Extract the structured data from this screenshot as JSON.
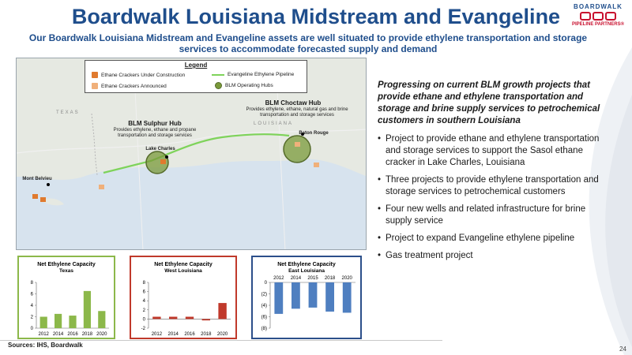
{
  "header": {
    "title": "Boardwalk Louisiana Midstream and Evangeline",
    "subtitle": "Our Boardwalk Louisiana Midstream and Evangeline assets are well situated to provide ethylene transportation and storage services to accommodate forecasted supply and demand"
  },
  "logo": {
    "word": "BOARDWALK",
    "tag": "PIPELINE PARTNERS®"
  },
  "legend": {
    "title": "Legend",
    "items": [
      "Ethane Crackers Under Construction",
      "Evangeline Ethylene Pipeline",
      "Ethane Crackers Announced",
      "BLM Operating Hubs"
    ]
  },
  "map": {
    "state_texas": "TEXAS",
    "state_louisiana": "LOUISIANA",
    "choctaw_title": "BLM Choctaw Hub",
    "choctaw_desc": "Provides ethylene, ethane, natural gas and brine transportation and storage services",
    "sulphur_title": "BLM Sulphur Hub",
    "sulphur_desc": "Provides ethylene, ethane and propane transportation and storage services",
    "city_lake_charles": "Lake Charles",
    "city_baton_rouge": "Baton Rouge",
    "city_mont_belvieu": "Mont Belvieu",
    "colors": {
      "pipeline": "#7ed35a",
      "hub": "#7a9a3a",
      "cracker": "#e07a2e"
    }
  },
  "right": {
    "lead": "Progressing on current BLM growth projects that provide ethane and ethylene transportation and storage and brine supply services to petrochemical customers in southern Louisiana",
    "bullets": [
      "Project to provide ethane and ethylene transportation and storage services to support the Sasol ethane cracker in Lake Charles, Louisiana",
      "Three projects to provide ethylene transportation and storage services to petrochemical customers",
      "Four new wells and related infrastructure for brine supply service",
      "Project to expand Evangeline ethylene pipeline",
      "Gas treatment project"
    ]
  },
  "chart_data": [
    {
      "type": "bar",
      "title": "Net Ethylene Capacity",
      "subtitle": "Texas",
      "categories": [
        "2012",
        "2014",
        "2016",
        "2018",
        "2020"
      ],
      "values": [
        2,
        2.5,
        2.2,
        6.5,
        3
      ],
      "ylim": [
        0,
        8
      ],
      "yticks": [
        "0",
        "2",
        "4",
        "6",
        "8"
      ],
      "color": "#8cb84a",
      "border": "#8cb84a"
    },
    {
      "type": "bar",
      "title": "Net Ethylene Capacity",
      "subtitle": "West Louisiana",
      "categories": [
        "2012",
        "2014",
        "2016",
        "2018",
        "2020"
      ],
      "values": [
        0.5,
        0.5,
        0.5,
        -0.3,
        3.5
      ],
      "ylim": [
        -2,
        8
      ],
      "yticks": [
        "-2",
        "0",
        "2",
        "4",
        "6",
        "8"
      ],
      "color": "#c0392b",
      "border": "#c0392b"
    },
    {
      "type": "bar",
      "title": "Net Ethylene Capacity",
      "subtitle": "East Louisiana",
      "categories": [
        "2012",
        "2014",
        "2015",
        "2018",
        "2020"
      ],
      "values": [
        -5.5,
        -4.6,
        -4.4,
        -5.1,
        -5.3
      ],
      "ylim": [
        -8,
        0
      ],
      "yticks": [
        "0",
        "(2)",
        "(4)",
        "(6)",
        "(8)"
      ],
      "color": "#4f7fc0",
      "border": "#2c4f8a"
    }
  ],
  "footer": {
    "sources": "Sources: IHS, Boardwalk",
    "page": "24"
  }
}
